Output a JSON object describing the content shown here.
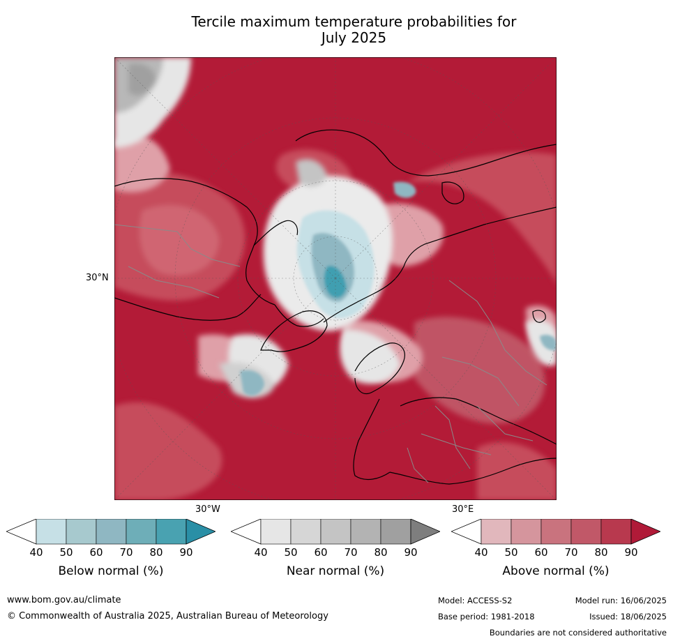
{
  "title_line1": "Tercile maximum temperature probabilities for",
  "title_line2": "July 2025",
  "map": {
    "lat_label": "30°N",
    "lon_labels": [
      "30°W",
      "30°E"
    ],
    "colors": {
      "above_dark": "#b31b37",
      "above_mid": "#c8505f",
      "above_light": "#dfa0a8",
      "near_light": "#e6e6e6",
      "near_mid": "#c4c4c4",
      "near_dark": "#a0a0a0",
      "below_light": "#c6e0e6",
      "below_mid": "#8fb7c2",
      "below_dark": "#3f9fb1"
    }
  },
  "colorbars": [
    {
      "label": "Below normal (%)",
      "ticks": [
        "40",
        "50",
        "60",
        "70",
        "80",
        "90"
      ],
      "colors": [
        "#ffffff",
        "#c6e0e6",
        "#a7c9ce",
        "#8fb7c2",
        "#6eaeb8",
        "#49a2b1",
        "#2a8fa6"
      ]
    },
    {
      "label": "Near normal (%)",
      "ticks": [
        "40",
        "50",
        "60",
        "70",
        "80",
        "90"
      ],
      "colors": [
        "#ffffff",
        "#e6e6e6",
        "#d6d6d6",
        "#c4c4c4",
        "#b3b3b3",
        "#a0a0a0",
        "#7e7e7e"
      ]
    },
    {
      "label": "Above normal (%)",
      "ticks": [
        "40",
        "50",
        "60",
        "70",
        "80",
        "90"
      ],
      "colors": [
        "#ffffff",
        "#e1b7bc",
        "#d5959d",
        "#c9737e",
        "#c15868",
        "#b8394e",
        "#b01a38"
      ]
    }
  ],
  "footer": {
    "website": "www.bom.gov.au/climate",
    "copyright": "© Commonwealth of Australia 2025, Australian Bureau of Meteorology",
    "model": "Model: ACCESS-S2",
    "base_period": "Base period: 1981-2018",
    "model_run": "Model run: 16/06/2025",
    "issued": "Issued: 18/06/2025",
    "disclaimer": "Boundaries are not considered authoritative"
  }
}
